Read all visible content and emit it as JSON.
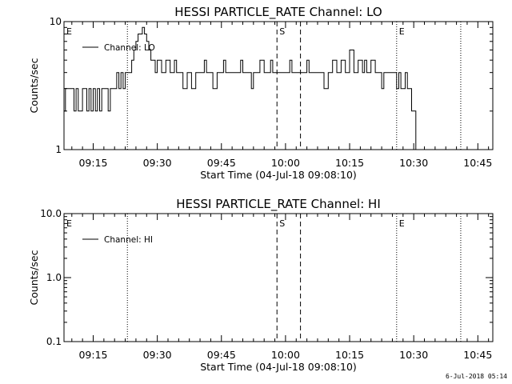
{
  "chart_data": [
    {
      "type": "line",
      "title": "HESSI PARTICLE_RATE Channel: LO",
      "xlabel": "Start Time (04-Jul-18 09:08:10)",
      "ylabel": "Counts/sec",
      "yscale": "log",
      "ylim": [
        1,
        10
      ],
      "xlim": [
        "09:08:10",
        "10:48:30"
      ],
      "x_ticks": [
        "09:15",
        "09:30",
        "09:45",
        "10:00",
        "10:15",
        "10:30",
        "10:45"
      ],
      "y_ticks": [
        {
          "value": 1,
          "label": "1"
        },
        {
          "value": 10,
          "label": "10"
        }
      ],
      "legend": {
        "position": "top-left",
        "entries": [
          "Channel: LO"
        ]
      },
      "markers": [
        {
          "time": "09:08:10",
          "label": "E",
          "style": "none"
        },
        {
          "time": "09:23:00",
          "label": "",
          "style": "dotted"
        },
        {
          "time": "09:58:00",
          "label": "S",
          "style": "dashed"
        },
        {
          "time": "10:03:30",
          "label": "",
          "style": "dashed"
        },
        {
          "time": "10:26:00",
          "label": "E",
          "style": "dotted"
        },
        {
          "time": "10:41:00",
          "label": "",
          "style": "dotted"
        }
      ],
      "series": [
        {
          "name": "Channel: LO",
          "x": [
            "09:08:10",
            "09:08:30",
            "09:09:00",
            "09:09:30",
            "09:10:00",
            "09:10:30",
            "09:11:00",
            "09:11:30",
            "09:12:00",
            "09:12:30",
            "09:13:00",
            "09:13:30",
            "09:14:00",
            "09:14:30",
            "09:15:00",
            "09:15:30",
            "09:16:00",
            "09:16:30",
            "09:17:00",
            "09:17:30",
            "09:18:00",
            "09:18:30",
            "09:19:00",
            "09:19:30",
            "09:20:00",
            "09:20:30",
            "09:21:00",
            "09:21:30",
            "09:22:00",
            "09:22:30",
            "09:23:00",
            "09:23:30",
            "09:24:00",
            "09:24:30",
            "09:25:00",
            "09:25:30",
            "09:26:00",
            "09:26:30",
            "09:27:00",
            "09:27:30",
            "09:28:00",
            "09:28:30",
            "09:29:00",
            "09:29:30",
            "09:30:00",
            "09:31:00",
            "09:32:00",
            "09:33:00",
            "09:34:00",
            "09:34:30",
            "09:35:00",
            "09:36:00",
            "09:37:00",
            "09:37:30",
            "09:38:00",
            "09:39:00",
            "09:40:00",
            "09:41:00",
            "09:41:30",
            "09:42:00",
            "09:43:00",
            "09:44:00",
            "09:45:00",
            "09:45:30",
            "09:46:00",
            "09:47:00",
            "09:48:00",
            "09:49:00",
            "09:49:30",
            "09:50:00",
            "09:51:00",
            "09:52:00",
            "09:52:30",
            "09:53:00",
            "09:54:00",
            "09:55:00",
            "09:56:00",
            "09:56:30",
            "09:57:00",
            "09:58:00",
            "09:59:00",
            "10:00:00",
            "10:01:00",
            "10:01:30",
            "10:02:00",
            "10:03:00",
            "10:04:00",
            "10:05:00",
            "10:05:30",
            "10:06:00",
            "10:07:00",
            "10:08:00",
            "10:09:00",
            "10:10:00",
            "10:10:30",
            "10:11:00",
            "10:12:00",
            "10:13:00",
            "10:14:00",
            "10:14:30",
            "10:15:00",
            "10:16:00",
            "10:17:00",
            "10:18:00",
            "10:18:30",
            "10:19:00",
            "10:20:00",
            "10:21:00",
            "10:22:00",
            "10:22:30",
            "10:23:00",
            "10:24:00",
            "10:25:00",
            "10:26:00",
            "10:26:30",
            "10:27:00",
            "10:28:00",
            "10:28:30",
            "10:29:00",
            "10:29:30",
            "10:30:00",
            "10:30:30",
            "10:31:00",
            "10:31:30",
            "10:32:00",
            "10:32:30",
            "10:33:00",
            "10:33:30",
            "10:34:00",
            "10:34:30",
            "10:35:00",
            "10:35:30",
            "10:36:00",
            "10:36:30",
            "10:37:00",
            "10:37:30",
            "10:38:00",
            "10:38:30",
            "10:39:00",
            "10:39:30",
            "10:40:00"
          ],
          "y": [
            2,
            3,
            3,
            3,
            3,
            2,
            3,
            2,
            2,
            3,
            3,
            2,
            3,
            2,
            3,
            2,
            3,
            2,
            3,
            3,
            3,
            2,
            3,
            3,
            3,
            4,
            3,
            4,
            3,
            4,
            4,
            4,
            5,
            6,
            7,
            8,
            8,
            9,
            8,
            7,
            6,
            5,
            5,
            4,
            5,
            4,
            5,
            4,
            5,
            4,
            4,
            3,
            4,
            4,
            3,
            4,
            4,
            5,
            4,
            4,
            3,
            4,
            4,
            5,
            4,
            4,
            4,
            4,
            5,
            4,
            4,
            3,
            4,
            4,
            5,
            4,
            4,
            5,
            4,
            4,
            4,
            4,
            5,
            4,
            4,
            4,
            4,
            5,
            4,
            4,
            4,
            4,
            3,
            4,
            4,
            5,
            4,
            5,
            4,
            4,
            6,
            4,
            5,
            4,
            5,
            4,
            5,
            4,
            4,
            3,
            4,
            4,
            4,
            3,
            4,
            3,
            4,
            3,
            3,
            2,
            2,
            1,
            1,
            1,
            1,
            1,
            1,
            1,
            1,
            1,
            1,
            1,
            1,
            1,
            1,
            1,
            1,
            1,
            1,
            1,
            1
          ]
        }
      ]
    },
    {
      "type": "line",
      "title": "HESSI PARTICLE_RATE Channel: HI",
      "xlabel": "Start Time (04-Jul-18 09:08:10)",
      "ylabel": "Counts/sec",
      "yscale": "log",
      "ylim": [
        0.1,
        10
      ],
      "xlim": [
        "09:08:10",
        "10:48:30"
      ],
      "x_ticks": [
        "09:15",
        "09:30",
        "09:45",
        "10:00",
        "10:15",
        "10:30",
        "10:45"
      ],
      "y_ticks": [
        {
          "value": 0.1,
          "label": "0.1"
        },
        {
          "value": 1,
          "label": "1.0"
        },
        {
          "value": 10,
          "label": "10.0"
        }
      ],
      "legend": {
        "position": "top-left",
        "entries": [
          "Channel: HI"
        ]
      },
      "markers": [
        {
          "time": "09:08:10",
          "label": "E",
          "style": "none"
        },
        {
          "time": "09:23:00",
          "label": "",
          "style": "dotted"
        },
        {
          "time": "09:58:00",
          "label": "S",
          "style": "dashed"
        },
        {
          "time": "10:03:30",
          "label": "",
          "style": "dashed"
        },
        {
          "time": "10:26:00",
          "label": "E",
          "style": "dotted"
        },
        {
          "time": "10:41:00",
          "label": "",
          "style": "dotted"
        }
      ],
      "series": [
        {
          "name": "Channel: HI",
          "x": [],
          "y": []
        }
      ]
    }
  ],
  "footer": {
    "timestamp": "6-Jul-2018 05:14"
  }
}
